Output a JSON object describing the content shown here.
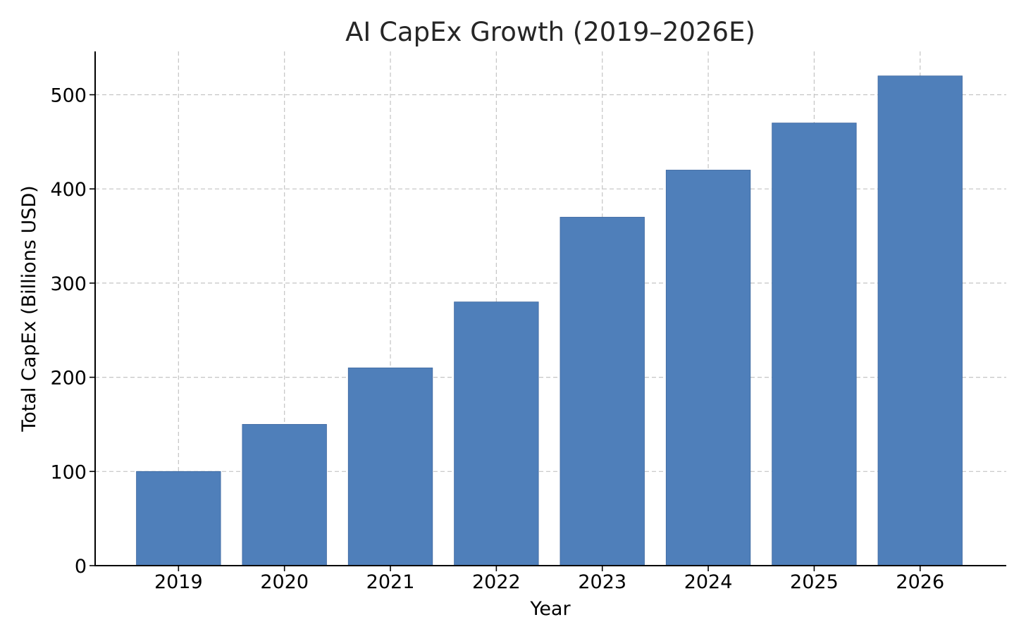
{
  "chart_data": {
    "type": "bar",
    "title": "AI CapEx Growth (2019–2026E)",
    "xlabel": "Year",
    "ylabel": "Total CapEx (Billions USD)",
    "categories": [
      "2019",
      "2020",
      "2021",
      "2022",
      "2023",
      "2024",
      "2025",
      "2026"
    ],
    "values": [
      100,
      150,
      210,
      280,
      370,
      420,
      470,
      520
    ],
    "ylim": [
      0,
      546
    ],
    "yticks": [
      0,
      100,
      200,
      300,
      400,
      500
    ],
    "grid": true,
    "legend": "none",
    "bar_color": "#4f7fba"
  }
}
